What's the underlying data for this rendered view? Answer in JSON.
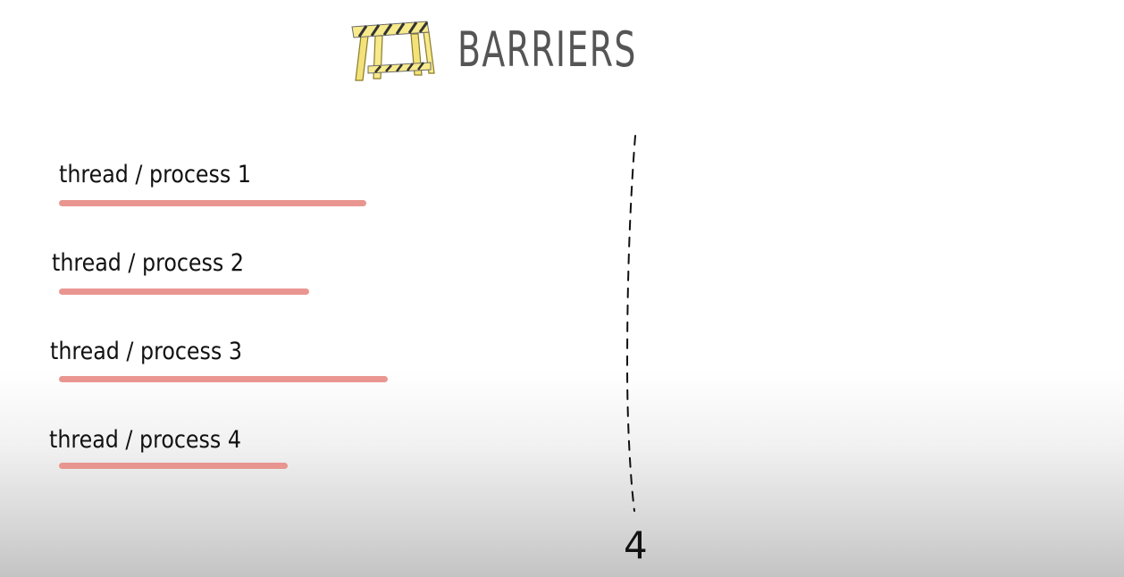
{
  "title": "BARRIERS",
  "icons": {
    "barrier": "sawhorse-barrier-icon"
  },
  "colors": {
    "progress_bar": "#e8908a",
    "title": "#555555",
    "text": "#111111"
  },
  "threads": [
    {
      "label": "thread / process 1"
    },
    {
      "label": "thread / process 2"
    },
    {
      "label": "thread / process 3"
    },
    {
      "label": "thread / process 4"
    }
  ],
  "barrier_count": "4"
}
